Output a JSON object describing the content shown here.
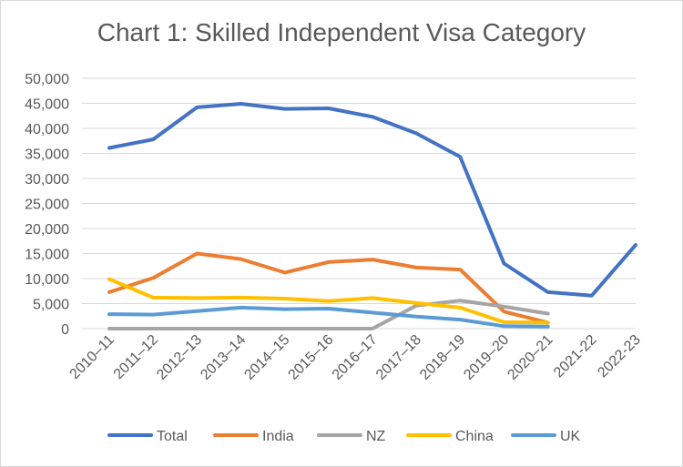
{
  "chart_data": {
    "type": "line",
    "title": "Chart 1: Skilled Independent Visa Category",
    "xlabel": "",
    "ylabel": "",
    "ylim": [
      0,
      50000
    ],
    "yticks": [
      0,
      5000,
      10000,
      15000,
      20000,
      25000,
      30000,
      35000,
      40000,
      45000,
      50000
    ],
    "ytick_labels": [
      "0",
      "5,000",
      "10,000",
      "15,000",
      "20,000",
      "25,000",
      "30,000",
      "35,000",
      "40,000",
      "45,000",
      "50,000"
    ],
    "grid": true,
    "legend_position": "bottom",
    "x": [
      "2010–11",
      "2011–12",
      "2012–13",
      "2013–14",
      "2014–15",
      "2015–16",
      "2016–17",
      "2017–18",
      "2018–19",
      "2019–20",
      "2020–21",
      "2021-22",
      "2022-23"
    ],
    "series": [
      {
        "name": "Total",
        "color": "#4472c4",
        "values": [
          36100,
          37800,
          44200,
          44900,
          43900,
          44000,
          42300,
          39000,
          34300,
          13000,
          7300,
          6600,
          16700
        ]
      },
      {
        "name": "India",
        "color": "#ed7d31",
        "values": [
          7300,
          10100,
          15000,
          13900,
          11200,
          13300,
          13800,
          12200,
          11800,
          3400,
          1200,
          null,
          null
        ]
      },
      {
        "name": "NZ",
        "color": "#a5a5a5",
        "values": [
          0,
          0,
          0,
          0,
          0,
          0,
          0,
          4600,
          5600,
          4400,
          3000,
          null,
          null
        ]
      },
      {
        "name": "China",
        "color": "#ffc000",
        "values": [
          9900,
          6200,
          6100,
          6200,
          6000,
          5500,
          6100,
          5100,
          4200,
          1300,
          1200,
          null,
          null
        ]
      },
      {
        "name": "UK",
        "color": "#5b9bd5",
        "values": [
          2900,
          2800,
          3500,
          4200,
          3900,
          4000,
          3200,
          2400,
          1800,
          500,
          400,
          null,
          null
        ]
      }
    ]
  }
}
